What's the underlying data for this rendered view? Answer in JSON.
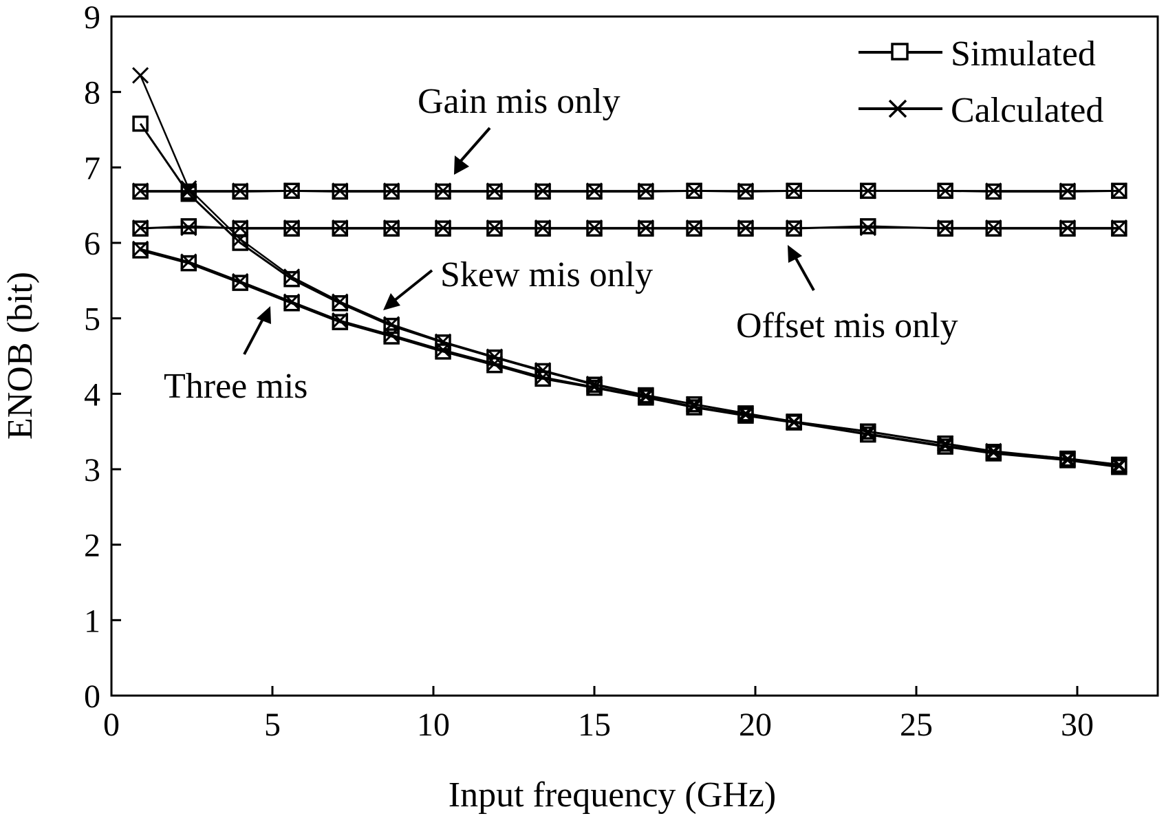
{
  "chart_data": {
    "type": "line",
    "xlabel": "Input frequency (GHz)",
    "ylabel": "ENOB (bit)",
    "xlim": [
      0,
      32.5
    ],
    "ylim": [
      0,
      9
    ],
    "xticks": [
      0,
      5,
      10,
      15,
      20,
      25,
      30
    ],
    "yticks": [
      0,
      1,
      2,
      3,
      4,
      5,
      6,
      7,
      8,
      9
    ],
    "legend": {
      "position": "top-right",
      "entries": [
        {
          "label": "Simulated",
          "marker": "square"
        },
        {
          "label": "Calculated",
          "marker": "x"
        }
      ]
    },
    "annotations": [
      {
        "text": "Gain mis only"
      },
      {
        "text": "Skew mis only"
      },
      {
        "text": "Offset mis only"
      },
      {
        "text": "Three mis"
      }
    ],
    "series": [
      {
        "name": "Gain mis only - Simulated",
        "marker": "square",
        "x": [
          0.9,
          2.4,
          4.0,
          5.6,
          7.1,
          8.7,
          10.3,
          11.9,
          13.4,
          15.0,
          16.6,
          18.1,
          19.7,
          21.2,
          23.5,
          25.9,
          27.4,
          29.7,
          31.3
        ],
        "y": [
          6.68,
          6.68,
          6.68,
          6.69,
          6.68,
          6.68,
          6.68,
          6.68,
          6.68,
          6.68,
          6.68,
          6.69,
          6.68,
          6.69,
          6.69,
          6.69,
          6.68,
          6.68,
          6.69
        ]
      },
      {
        "name": "Gain mis only - Calculated",
        "marker": "x",
        "x": [
          0.9,
          2.4,
          4.0,
          5.6,
          7.1,
          8.7,
          10.3,
          11.9,
          13.4,
          15.0,
          16.6,
          18.1,
          19.7,
          21.2,
          23.5,
          25.9,
          27.4,
          29.7,
          31.3
        ],
        "y": [
          6.69,
          6.69,
          6.69,
          6.69,
          6.69,
          6.69,
          6.69,
          6.69,
          6.69,
          6.69,
          6.69,
          6.69,
          6.69,
          6.69,
          6.69,
          6.69,
          6.69,
          6.69,
          6.69
        ]
      },
      {
        "name": "Offset mis only - Simulated",
        "marker": "square",
        "x": [
          0.9,
          2.4,
          4.0,
          5.6,
          7.1,
          8.7,
          10.3,
          11.9,
          13.4,
          15.0,
          16.6,
          18.1,
          19.7,
          21.2,
          23.5,
          25.9,
          27.4,
          29.7,
          31.3
        ],
        "y": [
          6.19,
          6.22,
          6.19,
          6.19,
          6.19,
          6.19,
          6.19,
          6.19,
          6.19,
          6.19,
          6.19,
          6.19,
          6.19,
          6.19,
          6.22,
          6.19,
          6.19,
          6.19,
          6.19
        ]
      },
      {
        "name": "Offset mis only - Calculated",
        "marker": "x",
        "x": [
          0.9,
          2.4,
          4.0,
          5.6,
          7.1,
          8.7,
          10.3,
          11.9,
          13.4,
          15.0,
          16.6,
          18.1,
          19.7,
          21.2,
          23.5,
          25.9,
          27.4,
          29.7,
          31.3
        ],
        "y": [
          6.2,
          6.2,
          6.2,
          6.2,
          6.2,
          6.2,
          6.2,
          6.2,
          6.2,
          6.2,
          6.2,
          6.2,
          6.2,
          6.2,
          6.2,
          6.2,
          6.2,
          6.2,
          6.2
        ]
      },
      {
        "name": "Skew mis only - Simulated",
        "marker": "square",
        "x": [
          0.9,
          2.4,
          4.0,
          5.6,
          7.1,
          8.7,
          10.3,
          11.9,
          13.4,
          15.0,
          16.6,
          18.1,
          19.7,
          21.2,
          23.5,
          25.9,
          27.4,
          29.7,
          31.3
        ],
        "y": [
          7.58,
          6.65,
          6.0,
          5.52,
          5.2,
          4.9,
          4.68,
          4.48,
          4.3,
          4.12,
          3.98,
          3.86,
          3.74,
          3.63,
          3.5,
          3.34,
          3.23,
          3.14,
          3.06
        ]
      },
      {
        "name": "Skew mis only - Calculated",
        "marker": "x",
        "x": [
          0.9,
          2.4,
          4.0,
          5.6,
          7.1,
          8.7,
          10.3,
          11.9,
          13.4,
          15.0,
          16.6,
          18.1,
          19.7,
          21.2,
          23.5,
          25.9,
          27.4,
          29.7,
          31.3
        ],
        "y": [
          8.22,
          6.72,
          6.05,
          5.55,
          5.22,
          4.92,
          4.69,
          4.49,
          4.31,
          4.13,
          3.98,
          3.86,
          3.74,
          3.63,
          3.5,
          3.34,
          3.24,
          3.14,
          3.06
        ]
      },
      {
        "name": "Three mis - Simulated",
        "marker": "square",
        "x": [
          0.9,
          2.4,
          4.0,
          5.6,
          7.1,
          8.7,
          10.3,
          11.9,
          13.4,
          15.0,
          16.6,
          18.1,
          19.7,
          21.2,
          23.5,
          25.9,
          27.4,
          29.7,
          31.3
        ],
        "y": [
          5.9,
          5.73,
          5.47,
          5.2,
          4.95,
          4.76,
          4.56,
          4.38,
          4.2,
          4.08,
          3.95,
          3.82,
          3.71,
          3.62,
          3.46,
          3.3,
          3.21,
          3.12,
          3.03
        ]
      },
      {
        "name": "Three mis - Calculated",
        "marker": "x",
        "x": [
          0.9,
          2.4,
          4.0,
          5.6,
          7.1,
          8.7,
          10.3,
          11.9,
          13.4,
          15.0,
          16.6,
          18.1,
          19.7,
          21.2,
          23.5,
          25.9,
          27.4,
          29.7,
          31.3
        ],
        "y": [
          5.92,
          5.75,
          5.49,
          5.22,
          4.97,
          4.78,
          4.58,
          4.4,
          4.22,
          4.09,
          3.96,
          3.83,
          3.72,
          3.62,
          3.47,
          3.31,
          3.22,
          3.12,
          3.04
        ]
      }
    ]
  }
}
